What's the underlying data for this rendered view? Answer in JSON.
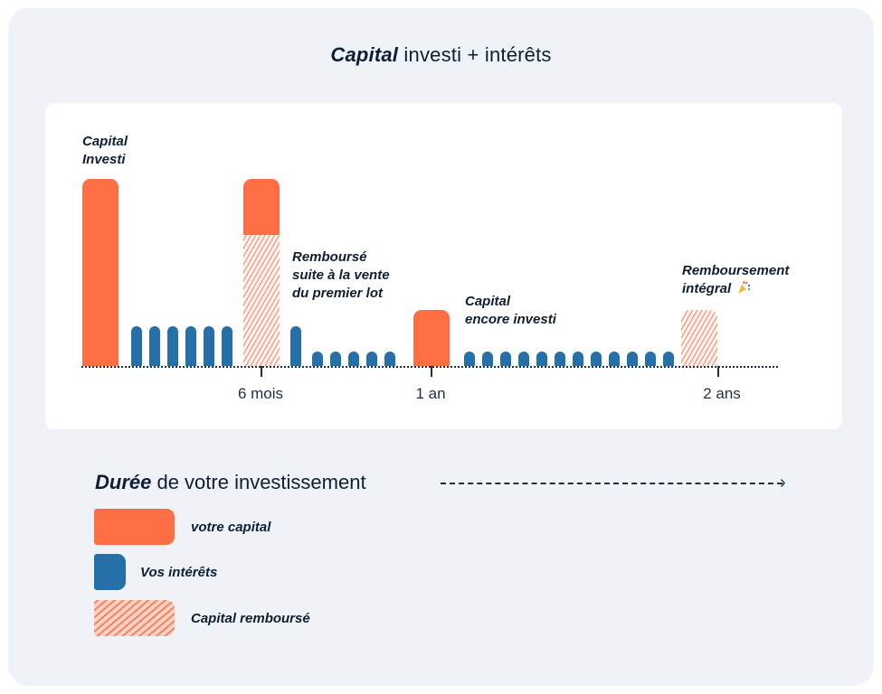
{
  "title": {
    "strong": "Capital",
    "rest": " investi + intérêts"
  },
  "timeline": {
    "tick_labels": [
      "6 mois",
      "1 an",
      "2 ans"
    ]
  },
  "annotations": {
    "capital_investi": [
      "Capital",
      "Investi"
    ],
    "rembourse": [
      "Remboursé",
      "suite à la vente",
      "du premier lot"
    ],
    "encore_investi": [
      "Capital",
      "encore investi"
    ],
    "integral": [
      "Remboursement",
      "intégral"
    ],
    "integral_icon": "party-popper-icon"
  },
  "duration": {
    "strong": "Durée",
    "rest": " de votre investissement"
  },
  "legend": {
    "capital": "votre capital",
    "interets": "Vos intérêts",
    "rembourse": "Capital remboursé"
  },
  "colors": {
    "capital": "#fd6e45",
    "interets": "#2670a9",
    "rembourse": "#f5a48a",
    "text": "#0e1f33",
    "background": "#eff3f8"
  }
}
